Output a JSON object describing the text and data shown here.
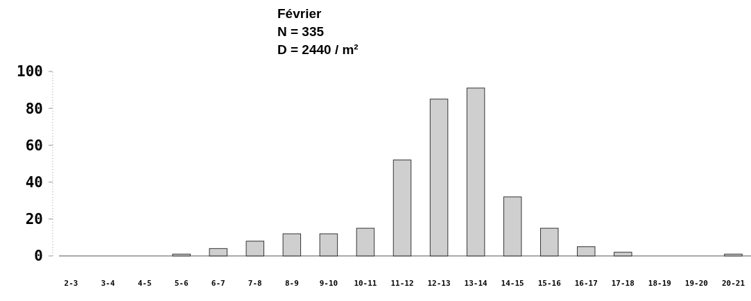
{
  "chart_data": {
    "type": "bar",
    "title": "Février",
    "subtitle": "N = 335",
    "annotations": [
      "D = 2440 / m²"
    ],
    "categories": [
      "2-3",
      "3-4",
      "4-5",
      "5-6",
      "6-7",
      "7-8",
      "8-9",
      "9-10",
      "10-11",
      "11-12",
      "12-13",
      "13-14",
      "14-15",
      "15-16",
      "16-17",
      "17-18",
      "18-19",
      "19-20",
      "20-21"
    ],
    "values": [
      0,
      0,
      0,
      1,
      4,
      8,
      12,
      12,
      15,
      52,
      85,
      91,
      32,
      15,
      5,
      2,
      0,
      0,
      1
    ],
    "color": "#cfcfcf",
    "ylim": [
      0,
      100
    ],
    "yticks": [
      0,
      20,
      40,
      60,
      80,
      100
    ],
    "grid": false
  }
}
